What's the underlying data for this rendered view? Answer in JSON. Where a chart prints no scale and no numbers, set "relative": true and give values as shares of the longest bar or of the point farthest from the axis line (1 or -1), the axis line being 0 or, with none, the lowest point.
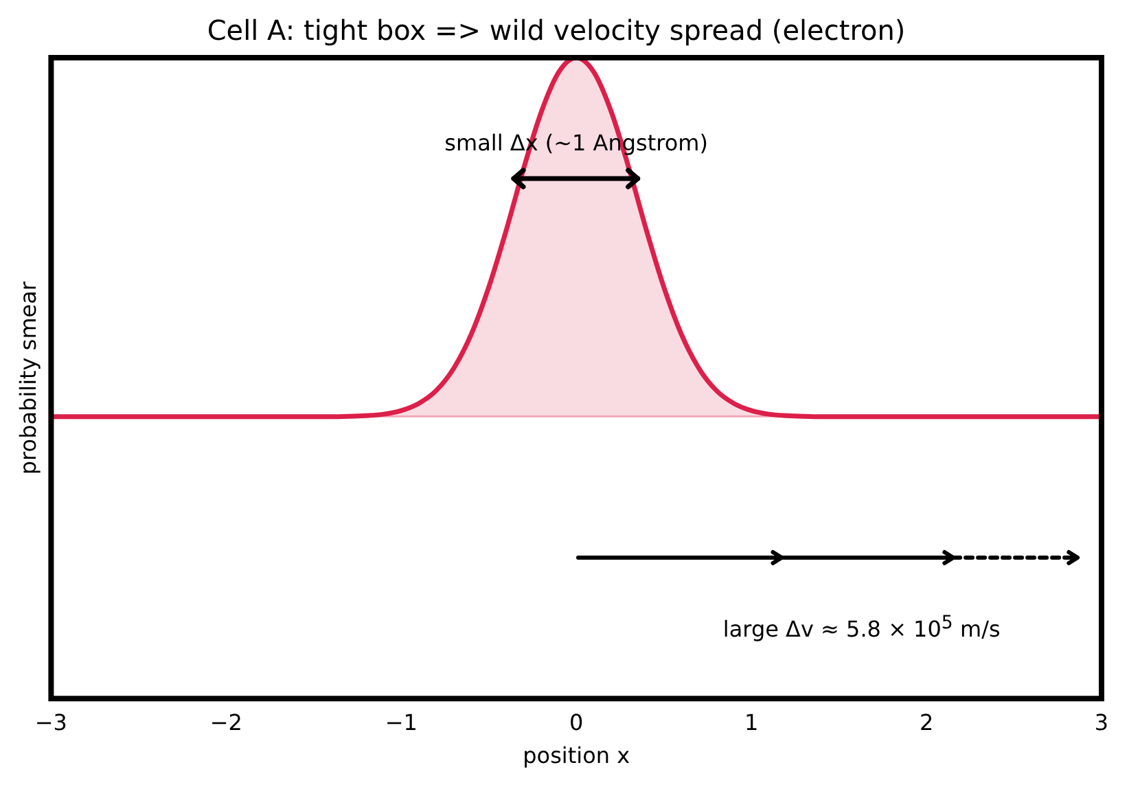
{
  "chart_data": {
    "type": "area",
    "title": "Cell A: tight box => wild velocity spread (electron)",
    "xlabel": "position x",
    "ylabel": "probability smear",
    "relative": true,
    "x": [
      -3,
      -2,
      -1.4,
      -1.3,
      -1.2,
      -1.1,
      -1.0,
      -0.9,
      -0.8,
      -0.7,
      -0.6,
      -0.5,
      -0.4,
      -0.3,
      -0.2,
      -0.1,
      0,
      0.1,
      0.2,
      0.3,
      0.4,
      0.5,
      0.6,
      0.7,
      0.8,
      0.9,
      1.0,
      1.1,
      1.2,
      1.3,
      1.4,
      2,
      3
    ],
    "series": [
      {
        "color": "#dc2049",
        "values": [
          0,
          0,
          0,
          0.001,
          0.003,
          0.007,
          0.017,
          0.037,
          0.073,
          0.135,
          0.23,
          0.361,
          0.52,
          0.693,
          0.849,
          0.96,
          1,
          0.96,
          0.849,
          0.693,
          0.52,
          0.361,
          0.23,
          0.135,
          0.073,
          0.037,
          0.017,
          0.007,
          0.003,
          0.001,
          0,
          0,
          0
        ]
      }
    ],
    "xlim": [
      -3,
      3
    ],
    "xticks": [
      {
        "value": -3,
        "label": "−3"
      },
      {
        "value": -2,
        "label": "−2"
      },
      {
        "value": -1,
        "label": "−1"
      },
      0,
      1,
      2,
      3
    ],
    "tick_labels": "x",
    "grid": false,
    "legend": false,
    "annotations": [
      "small Δ$_{}$x (~1 Angstrom)",
      "large Δv ≈ 5.8 × 10$^{5}$ m/s"
    ]
  }
}
